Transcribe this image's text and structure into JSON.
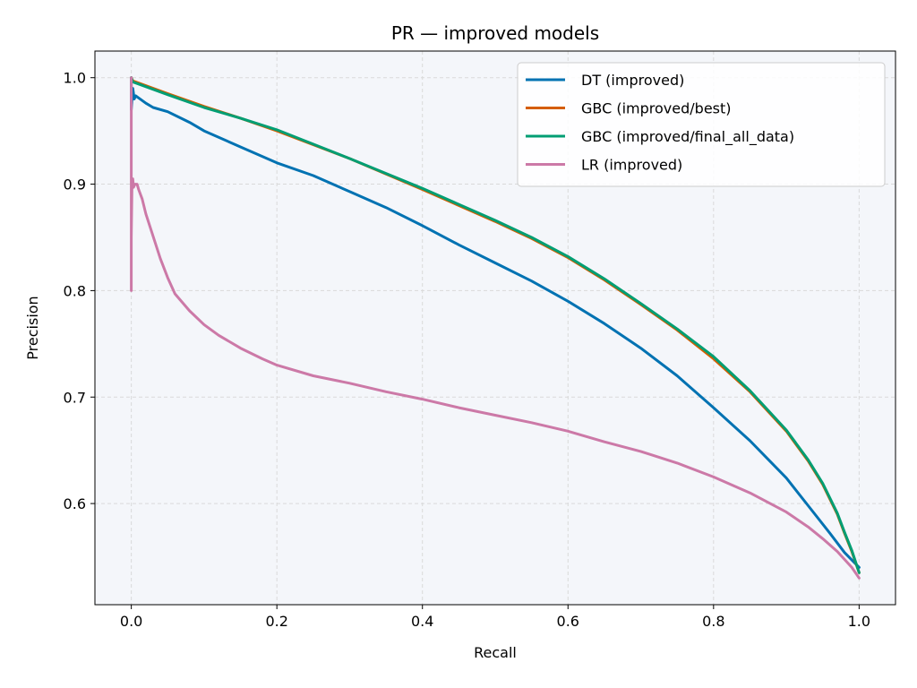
{
  "chart_data": {
    "type": "line",
    "title": "PR — improved models",
    "xlabel": "Recall",
    "ylabel": "Precision",
    "xlim": [
      -0.05,
      1.05
    ],
    "ylim": [
      0.505,
      1.025
    ],
    "xticks": [
      0.0,
      0.2,
      0.4,
      0.6,
      0.8,
      1.0
    ],
    "xtick_labels": [
      "0.0",
      "0.2",
      "0.4",
      "0.6",
      "0.8",
      "1.0"
    ],
    "yticks": [
      0.6,
      0.7,
      0.8,
      0.9,
      1.0
    ],
    "ytick_labels": [
      "0.6",
      "0.7",
      "0.8",
      "0.9",
      "1.0"
    ],
    "grid": true,
    "legend_position": "top-right",
    "background": "#f4f6fa",
    "series": [
      {
        "name": "DT (improved)",
        "color": "#0072b2",
        "x": [
          0.0,
          0.0,
          0.002,
          0.004,
          0.006,
          0.008,
          0.01,
          0.02,
          0.03,
          0.05,
          0.08,
          0.1,
          0.15,
          0.2,
          0.25,
          0.3,
          0.35,
          0.4,
          0.45,
          0.5,
          0.55,
          0.6,
          0.65,
          0.7,
          0.75,
          0.8,
          0.85,
          0.9,
          0.93,
          0.96,
          0.98,
          1.0
        ],
        "y": [
          1.0,
          0.97,
          0.99,
          0.98,
          0.983,
          0.982,
          0.981,
          0.976,
          0.972,
          0.968,
          0.958,
          0.95,
          0.935,
          0.92,
          0.908,
          0.893,
          0.878,
          0.861,
          0.843,
          0.826,
          0.809,
          0.79,
          0.769,
          0.746,
          0.72,
          0.69,
          0.659,
          0.624,
          0.598,
          0.572,
          0.554,
          0.54
        ]
      },
      {
        "name": "GBC (improved/best)",
        "color": "#d55e00",
        "x": [
          0.0,
          0.002,
          0.01,
          0.05,
          0.1,
          0.15,
          0.2,
          0.3,
          0.4,
          0.5,
          0.55,
          0.6,
          0.65,
          0.7,
          0.75,
          0.8,
          0.85,
          0.9,
          0.93,
          0.95,
          0.97,
          0.98,
          0.99,
          1.0
        ],
        "y": [
          1.0,
          0.997,
          0.995,
          0.985,
          0.973,
          0.962,
          0.95,
          0.924,
          0.895,
          0.865,
          0.849,
          0.831,
          0.81,
          0.787,
          0.763,
          0.736,
          0.705,
          0.668,
          0.64,
          0.618,
          0.59,
          0.572,
          0.555,
          0.535
        ]
      },
      {
        "name": "GBC (improved/final_all_data)",
        "color": "#009e73",
        "x": [
          0.0,
          0.002,
          0.01,
          0.05,
          0.1,
          0.15,
          0.2,
          0.3,
          0.4,
          0.5,
          0.55,
          0.6,
          0.65,
          0.7,
          0.75,
          0.8,
          0.85,
          0.9,
          0.93,
          0.95,
          0.97,
          0.98,
          0.99,
          1.0
        ],
        "y": [
          1.0,
          0.996,
          0.994,
          0.984,
          0.972,
          0.962,
          0.951,
          0.924,
          0.896,
          0.866,
          0.85,
          0.832,
          0.811,
          0.788,
          0.764,
          0.738,
          0.706,
          0.669,
          0.641,
          0.619,
          0.591,
          0.573,
          0.556,
          0.535
        ]
      },
      {
        "name": "LR (improved)",
        "color": "#cc79a7",
        "x": [
          0.0,
          0.0,
          0.0,
          0.001,
          0.002,
          0.003,
          0.005,
          0.008,
          0.01,
          0.015,
          0.02,
          0.03,
          0.04,
          0.05,
          0.06,
          0.08,
          0.1,
          0.12,
          0.15,
          0.18,
          0.2,
          0.25,
          0.3,
          0.35,
          0.4,
          0.45,
          0.5,
          0.55,
          0.6,
          0.65,
          0.7,
          0.75,
          0.8,
          0.85,
          0.9,
          0.93,
          0.95,
          0.97,
          0.99,
          1.0
        ],
        "y": [
          0.8,
          1.0,
          0.85,
          0.9,
          0.905,
          0.897,
          0.9,
          0.9,
          0.895,
          0.886,
          0.872,
          0.851,
          0.83,
          0.812,
          0.797,
          0.781,
          0.768,
          0.758,
          0.746,
          0.736,
          0.73,
          0.72,
          0.713,
          0.705,
          0.698,
          0.69,
          0.683,
          0.676,
          0.668,
          0.658,
          0.649,
          0.638,
          0.625,
          0.61,
          0.592,
          0.578,
          0.567,
          0.555,
          0.54,
          0.53
        ]
      }
    ]
  }
}
